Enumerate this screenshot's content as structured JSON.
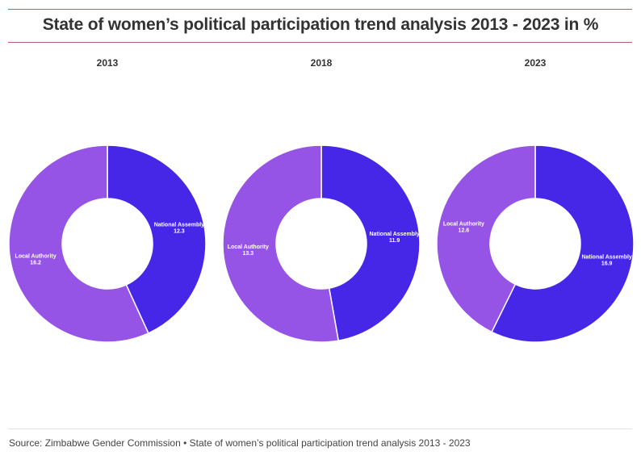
{
  "header": {
    "title": "State of women’s political participation trend analysis 2013 - 2023 in %"
  },
  "footer": {
    "source": "Source: Zimbabwe Gender Commission • State of women’s political participation trend analysis 2013 - 2023"
  },
  "colors": {
    "national_assembly": "#4627e8",
    "local_authority": "#9654e6",
    "title_rule": "#b85a68"
  },
  "chart_data": [
    {
      "type": "pie",
      "title": "2013",
      "donut": true,
      "slices": [
        {
          "label": "National Assembly",
          "value": 12.3
        },
        {
          "label": "Local Authority",
          "value": 16.2
        }
      ]
    },
    {
      "type": "pie",
      "title": "2018",
      "donut": true,
      "slices": [
        {
          "label": "National Assembly",
          "value": 11.9
        },
        {
          "label": "Local Authority",
          "value": 13.3
        }
      ]
    },
    {
      "type": "pie",
      "title": "2023",
      "donut": true,
      "slices": [
        {
          "label": "National Assembly",
          "value": 16.9
        },
        {
          "label": "Local Authority",
          "value": 12.6
        }
      ]
    }
  ]
}
